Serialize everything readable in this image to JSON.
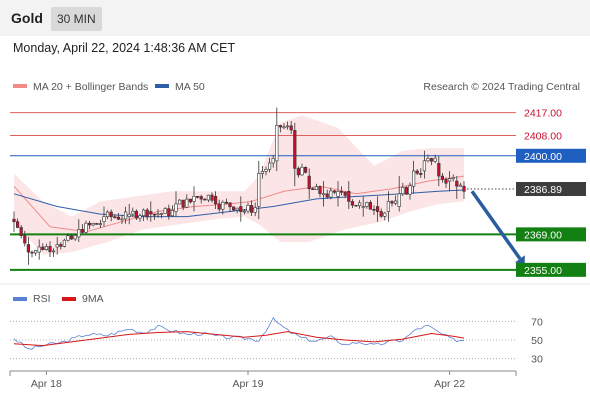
{
  "header": {
    "title": "Gold",
    "timeframe": "30 MIN"
  },
  "datetime": "Monday, April 22, 2024 1:48:36 AM CET",
  "colors": {
    "resistance": "#e06060",
    "pivot": "#1f5fbf",
    "support": "#128012",
    "up": "#ffffff",
    "down": "#c8102e",
    "arrow": "#2a5d9f",
    "rsi": "#5a7fd6",
    "rsi_ma": "#d81818",
    "band": "#fadadd"
  },
  "chart_data": [
    {
      "type": "candlestick",
      "legend": [
        {
          "label": "MA 20 + Bollinger Bands",
          "color": "#f28a8a"
        },
        {
          "label": "MA 50",
          "color": "#2d5fa6"
        }
      ],
      "credit": "Research © 2024 Trading Central",
      "ylim": [
        2351,
        2422
      ],
      "x_labels": [
        {
          "label": "Apr 18",
          "index": 9
        },
        {
          "label": "Apr 19",
          "index": 65
        },
        {
          "label": "Apr 22",
          "index": 121
        }
      ],
      "current_price": 2386.89,
      "levels": [
        {
          "value": 2417.0,
          "label": "2417.00",
          "kind": "resistance"
        },
        {
          "value": 2408.0,
          "label": "2408.00",
          "kind": "resistance"
        },
        {
          "value": 2400.0,
          "label": "2400.00",
          "kind": "pivot"
        },
        {
          "value": 2369.0,
          "label": "2369.00",
          "kind": "support"
        },
        {
          "value": 2355.0,
          "label": "2355.00",
          "kind": "support"
        }
      ],
      "forecast_arrow": {
        "from": 2386.0,
        "to": 2357.0,
        "bars": 15
      },
      "anchors": [
        [
          0,
          2375,
          2374,
          2378,
          2370
        ],
        [
          4,
          2365,
          2362,
          2368,
          2357
        ],
        [
          7,
          2362,
          2364,
          2367,
          2359
        ],
        [
          12,
          2364,
          2365,
          2368,
          2361
        ],
        [
          18,
          2368,
          2371,
          2375,
          2366
        ],
        [
          25,
          2374,
          2376,
          2380,
          2372
        ],
        [
          32,
          2376,
          2377,
          2381,
          2373
        ],
        [
          38,
          2378,
          2377,
          2382,
          2374
        ],
        [
          45,
          2378,
          2381,
          2386,
          2376
        ],
        [
          50,
          2382,
          2384,
          2388,
          2378
        ],
        [
          56,
          2384,
          2381,
          2386,
          2379
        ],
        [
          63,
          2380,
          2378,
          2384,
          2374
        ],
        [
          68,
          2380,
          2393,
          2398,
          2375
        ],
        [
          73,
          2398,
          2412,
          2419,
          2394
        ],
        [
          78,
          2410,
          2395,
          2413,
          2388
        ],
        [
          82,
          2392,
          2387,
          2395,
          2383
        ],
        [
          86,
          2385,
          2385,
          2390,
          2380
        ],
        [
          90,
          2384,
          2386,
          2390,
          2380
        ],
        [
          93,
          2386,
          2382,
          2390,
          2379
        ],
        [
          97,
          2380,
          2380,
          2384,
          2376
        ],
        [
          101,
          2380,
          2378,
          2384,
          2374
        ],
        [
          104,
          2378,
          2382,
          2386,
          2374
        ],
        [
          107,
          2380,
          2385,
          2392,
          2378
        ],
        [
          111,
          2388,
          2394,
          2398,
          2385
        ],
        [
          114,
          2394,
          2398,
          2402,
          2391
        ],
        [
          118,
          2397,
          2392,
          2400,
          2388
        ],
        [
          121,
          2390,
          2391,
          2394,
          2386
        ],
        [
          123,
          2390,
          2388,
          2392,
          2383
        ],
        [
          125,
          2388,
          2386,
          2390,
          2383
        ]
      ],
      "ma20": [
        [
          0,
          2388
        ],
        [
          10,
          2372
        ],
        [
          20,
          2370
        ],
        [
          30,
          2374
        ],
        [
          40,
          2378
        ],
        [
          50,
          2380
        ],
        [
          60,
          2381
        ],
        [
          66,
          2382
        ],
        [
          75,
          2386
        ],
        [
          85,
          2388
        ],
        [
          95,
          2385
        ],
        [
          105,
          2387
        ],
        [
          115,
          2390
        ],
        [
          125,
          2392
        ]
      ],
      "bb_upper": [
        [
          0,
          2393
        ],
        [
          8,
          2382
        ],
        [
          16,
          2376
        ],
        [
          24,
          2382
        ],
        [
          34,
          2384
        ],
        [
          44,
          2386
        ],
        [
          54,
          2386
        ],
        [
          64,
          2386
        ],
        [
          68,
          2392
        ],
        [
          74,
          2413
        ],
        [
          80,
          2416
        ],
        [
          90,
          2411
        ],
        [
          100,
          2396
        ],
        [
          108,
          2402
        ],
        [
          116,
          2403
        ],
        [
          125,
          2403
        ]
      ],
      "bb_lower": [
        [
          0,
          2374
        ],
        [
          8,
          2361
        ],
        [
          16,
          2362
        ],
        [
          26,
          2366
        ],
        [
          36,
          2371
        ],
        [
          46,
          2373
        ],
        [
          56,
          2375
        ],
        [
          64,
          2376
        ],
        [
          68,
          2373
        ],
        [
          74,
          2366
        ],
        [
          82,
          2366
        ],
        [
          92,
          2371
        ],
        [
          102,
          2374
        ],
        [
          110,
          2378
        ],
        [
          118,
          2381
        ],
        [
          125,
          2382
        ]
      ],
      "ma50": [
        [
          0,
          2385
        ],
        [
          12,
          2380
        ],
        [
          24,
          2377
        ],
        [
          36,
          2376
        ],
        [
          48,
          2376
        ],
        [
          60,
          2378
        ],
        [
          72,
          2380
        ],
        [
          84,
          2383
        ],
        [
          96,
          2384
        ],
        [
          108,
          2385
        ],
        [
          118,
          2386
        ],
        [
          125,
          2386.5
        ]
      ]
    },
    {
      "type": "line",
      "legend": [
        {
          "label": "RSI",
          "color": "#5a7fd6"
        },
        {
          "label": "9MA",
          "color": "#d81818"
        }
      ],
      "ylim": [
        20,
        80
      ],
      "y_ticks": [
        {
          "value": 70,
          "label": "70"
        },
        {
          "value": 50,
          "label": "50"
        },
        {
          "value": 30,
          "label": "30"
        }
      ],
      "rsi": [
        [
          0,
          52
        ],
        [
          4,
          40
        ],
        [
          8,
          44
        ],
        [
          14,
          48
        ],
        [
          20,
          56
        ],
        [
          26,
          55
        ],
        [
          32,
          62
        ],
        [
          36,
          58
        ],
        [
          40,
          64
        ],
        [
          44,
          60
        ],
        [
          48,
          56
        ],
        [
          52,
          57
        ],
        [
          58,
          53
        ],
        [
          64,
          52
        ],
        [
          68,
          50
        ],
        [
          72,
          72
        ],
        [
          76,
          60
        ],
        [
          80,
          52
        ],
        [
          84,
          49
        ],
        [
          88,
          53
        ],
        [
          92,
          45
        ],
        [
          96,
          48
        ],
        [
          100,
          44
        ],
        [
          104,
          48
        ],
        [
          108,
          50
        ],
        [
          112,
          62
        ],
        [
          115,
          65
        ],
        [
          118,
          58
        ],
        [
          122,
          50
        ],
        [
          125,
          50
        ]
      ],
      "rsi_ma": [
        [
          0,
          46
        ],
        [
          8,
          44
        ],
        [
          16,
          48
        ],
        [
          24,
          52
        ],
        [
          32,
          56
        ],
        [
          40,
          58
        ],
        [
          48,
          59
        ],
        [
          56,
          56
        ],
        [
          64,
          53
        ],
        [
          70,
          55
        ],
        [
          76,
          59
        ],
        [
          84,
          53
        ],
        [
          92,
          50
        ],
        [
          100,
          48
        ],
        [
          108,
          51
        ],
        [
          116,
          57
        ],
        [
          122,
          54
        ],
        [
          125,
          52
        ]
      ]
    }
  ]
}
